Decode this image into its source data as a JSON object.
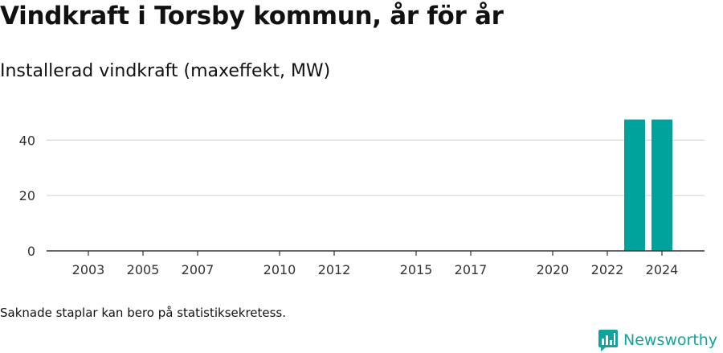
{
  "chart_data": {
    "type": "bar",
    "title": "Vindkraft i Torsby kommun, år för år",
    "subtitle": "Installerad vindkraft (maxeffekt, MW)",
    "xlabel": "",
    "ylabel": "",
    "categories": [
      "2002",
      "2003",
      "2004",
      "2005",
      "2006",
      "2007",
      "2008",
      "2009",
      "2010",
      "2011",
      "2012",
      "2013",
      "2014",
      "2015",
      "2016",
      "2017",
      "2018",
      "2019",
      "2020",
      "2021",
      "2022",
      "2023",
      "2024"
    ],
    "values": [
      0,
      0,
      0,
      0,
      0,
      0,
      0,
      0,
      0,
      0,
      0,
      0,
      0,
      0,
      0,
      0,
      0,
      0,
      0,
      0,
      0,
      47.5,
      47.5
    ],
    "x_tick_labels": [
      "2003",
      "2005",
      "2007",
      "2010",
      "2012",
      "2015",
      "2017",
      "2020",
      "2022",
      "2024"
    ],
    "y_ticks": [
      0,
      20,
      40
    ],
    "ylim": [
      0,
      50
    ],
    "grid": true,
    "bar_color": "#00a39b"
  },
  "footnote": "Saknade staplar kan bero på statistiksekretess.",
  "brand": {
    "name": "Newsworthy",
    "color": "#13a39b"
  }
}
